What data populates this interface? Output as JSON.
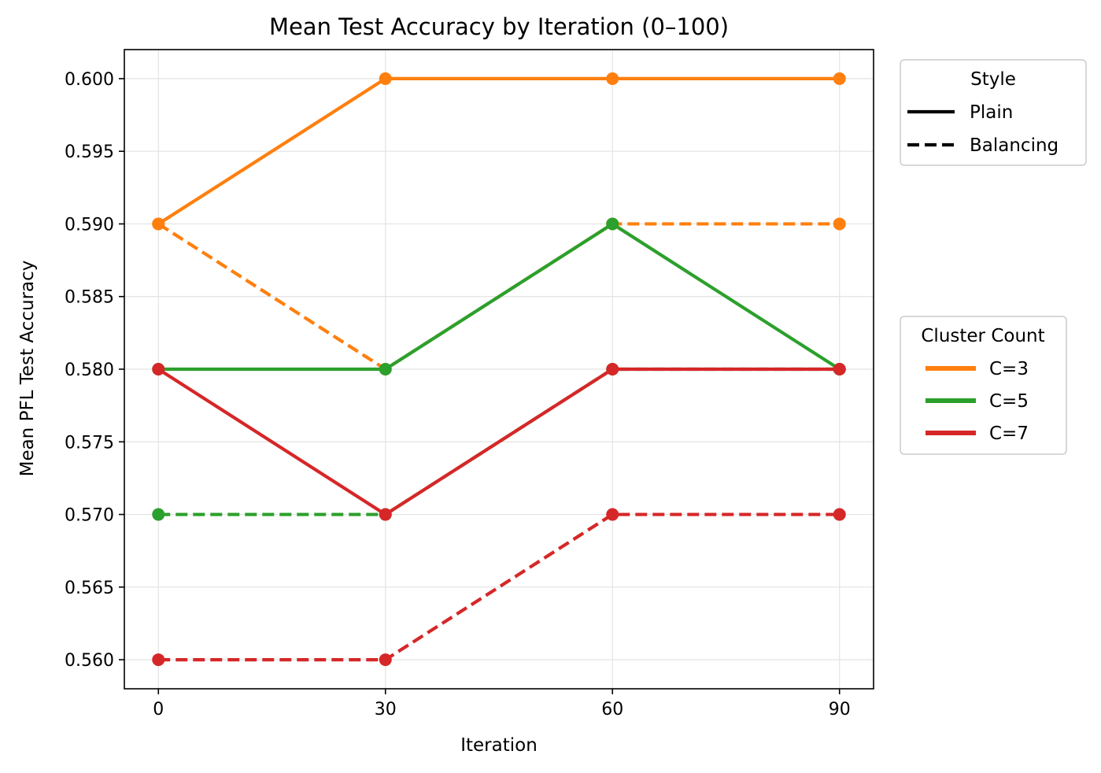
{
  "chart_data": {
    "type": "line",
    "title": "Mean Test Accuracy by Iteration (0–100)",
    "xlabel": "Iteration",
    "ylabel": "Mean PFL Test Accuracy",
    "x": [
      0,
      30,
      60,
      90
    ],
    "x_ticks": [
      "0",
      "30",
      "60",
      "90"
    ],
    "y_ticks": [
      "0.560",
      "0.565",
      "0.570",
      "0.575",
      "0.580",
      "0.585",
      "0.590",
      "0.595",
      "0.600"
    ],
    "y_tick_values": [
      0.56,
      0.565,
      0.57,
      0.575,
      0.58,
      0.585,
      0.59,
      0.595,
      0.6
    ],
    "xlim": [
      -4.5,
      94.5
    ],
    "ylim": [
      0.558,
      0.602
    ],
    "grid": true,
    "series": [
      {
        "cluster": "C=3",
        "style": "Plain",
        "color": "#ff7f0e",
        "dash": "solid",
        "values": [
          0.59,
          0.6,
          0.6,
          0.6
        ]
      },
      {
        "cluster": "C=3",
        "style": "Balancing",
        "color": "#ff7f0e",
        "dash": "dashed",
        "values": [
          0.59,
          0.58,
          0.59,
          0.59
        ]
      },
      {
        "cluster": "C=5",
        "style": "Plain",
        "color": "#2ca02c",
        "dash": "solid",
        "values": [
          0.58,
          0.58,
          0.59,
          0.58
        ]
      },
      {
        "cluster": "C=5",
        "style": "Balancing",
        "color": "#2ca02c",
        "dash": "dashed",
        "values": [
          0.57,
          0.57,
          0.58,
          0.58
        ]
      },
      {
        "cluster": "C=7",
        "style": "Plain",
        "color": "#d62728",
        "dash": "solid",
        "values": [
          0.58,
          0.57,
          0.58,
          0.58
        ]
      },
      {
        "cluster": "C=7",
        "style": "Balancing",
        "color": "#d62728",
        "dash": "dashed",
        "values": [
          0.56,
          0.56,
          0.57,
          0.57
        ]
      }
    ],
    "legend_style": {
      "title": "Style",
      "placement": "outside-top-right",
      "entries": [
        {
          "label": "Plain",
          "dash": "solid",
          "color": "#000000"
        },
        {
          "label": "Balancing",
          "dash": "dashed",
          "color": "#000000"
        }
      ]
    },
    "legend_cluster": {
      "title": "Cluster Count",
      "placement": "outside-right",
      "entries": [
        {
          "label": "C=3",
          "color": "#ff7f0e"
        },
        {
          "label": "C=5",
          "color": "#2ca02c"
        },
        {
          "label": "C=7",
          "color": "#d62728"
        }
      ]
    }
  }
}
